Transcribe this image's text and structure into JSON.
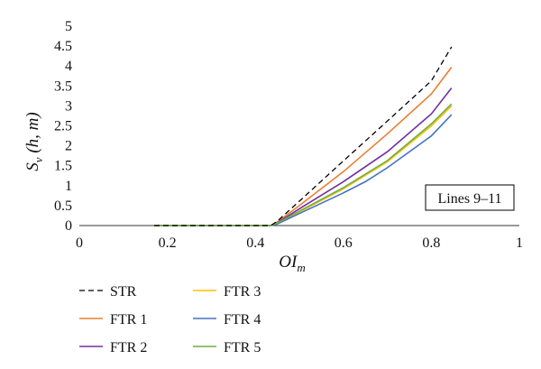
{
  "chart_data": {
    "type": "line",
    "xlabel": "OI",
    "xlabel_sub": "m",
    "ylabel": "S",
    "ylabel_sub": "v",
    "ylabel_args": " (h, m)",
    "xlim": [
      0,
      1
    ],
    "ylim": [
      0,
      5
    ],
    "x_ticks": [
      0,
      0.2,
      0.4,
      0.6,
      0.8,
      1
    ],
    "x_tick_labels": [
      "0",
      "0.2",
      "0.4",
      "0.6",
      "0.8",
      "1"
    ],
    "y_ticks": [
      0,
      0.5,
      1,
      1.5,
      2,
      2.5,
      3,
      3.5,
      4,
      4.5,
      5
    ],
    "y_tick_labels": [
      "0",
      "0.5",
      "1",
      "1.5",
      "2",
      "2.5",
      "3",
      "3.5",
      "4",
      "4.5",
      "5"
    ],
    "grid": false,
    "legend_position": "bottom",
    "annotation": "Lines 9–11",
    "series": [
      {
        "name": "STR",
        "color": "#000000",
        "dash": true,
        "x": [
          0.17,
          0.435,
          0.45,
          0.5,
          0.6,
          0.7,
          0.8,
          0.846
        ],
        "y": [
          0,
          0,
          0.11,
          0.61,
          1.62,
          2.62,
          3.63,
          4.48
        ]
      },
      {
        "name": "FTR 1",
        "color": "#ed7d31",
        "dash": false,
        "x": [
          0.17,
          0.435,
          0.45,
          0.5,
          0.6,
          0.7,
          0.8,
          0.846
        ],
        "y": [
          0,
          0,
          0.09,
          0.5,
          1.35,
          2.3,
          3.3,
          3.97
        ]
      },
      {
        "name": "FTR 2",
        "color": "#7030a0",
        "dash": false,
        "x": [
          0.17,
          0.435,
          0.45,
          0.5,
          0.6,
          0.7,
          0.8,
          0.846
        ],
        "y": [
          0,
          0,
          0.07,
          0.42,
          1.1,
          1.85,
          2.8,
          3.45
        ]
      },
      {
        "name": "FTR 3",
        "color": "#ffc000",
        "dash": false,
        "x": [
          0.17,
          0.435,
          0.45,
          0.5,
          0.6,
          0.7,
          0.8,
          0.846
        ],
        "y": [
          0,
          0,
          0.05,
          0.34,
          0.92,
          1.6,
          2.5,
          3.0
        ]
      },
      {
        "name": "FTR 4",
        "color": "#4472c4",
        "dash": false,
        "x": [
          0.17,
          0.435,
          0.45,
          0.5,
          0.6,
          0.65,
          0.7,
          0.8,
          0.846
        ],
        "y": [
          0,
          0,
          0.04,
          0.3,
          0.82,
          1.1,
          1.45,
          2.25,
          2.78
        ]
      },
      {
        "name": "FTR 5",
        "color": "#70ad47",
        "dash": false,
        "x": [
          0.17,
          0.435,
          0.45,
          0.5,
          0.6,
          0.7,
          0.8,
          0.846
        ],
        "y": [
          0,
          0,
          0.06,
          0.36,
          0.95,
          1.63,
          2.55,
          3.05
        ]
      }
    ],
    "legend_order": [
      "STR",
      "FTR 3",
      "FTR 1",
      "FTR 4",
      "FTR 2",
      "FTR 5"
    ]
  }
}
